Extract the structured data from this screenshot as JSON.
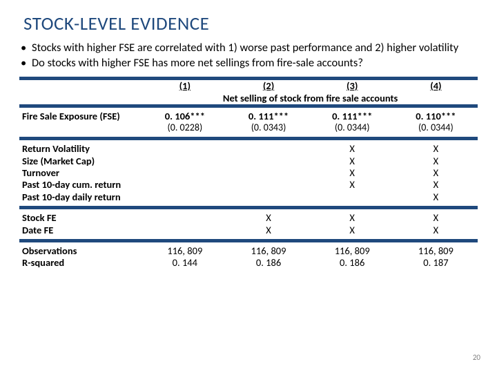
{
  "title": "STOCK-LEVEL EVIDENCE",
  "bullets": [
    "Stocks with higher FSE are correlated  with 1) worse past performance and 2) higher volatility",
    "Do stocks with higher FSE has more net sellings from fire-sale accounts?"
  ],
  "table": {
    "col_headers": [
      "(1)",
      "(2)",
      "(3)",
      "(4)"
    ],
    "sub_header": "Net selling of stock from fire sale accounts",
    "fse_label": "Fire Sale Exposure (FSE)",
    "fse": {
      "coef": [
        "0. 106***",
        "0. 111***",
        "0. 111***",
        "0. 110***"
      ],
      "se": [
        "(0. 0228)",
        "(0. 0343)",
        "(0. 0344)",
        "(0. 0344)"
      ]
    },
    "controls": [
      {
        "label": "Return Volatility",
        "marks": [
          "",
          "",
          "X",
          "X"
        ]
      },
      {
        "label": "Size (Market Cap)",
        "marks": [
          "",
          "",
          "X",
          "X"
        ]
      },
      {
        "label": "Turnover",
        "marks": [
          "",
          "",
          "X",
          "X"
        ]
      },
      {
        "label": "Past 10-day cum. return",
        "marks": [
          "",
          "",
          "X",
          "X"
        ]
      },
      {
        "label": "Past 10-day daily return",
        "marks": [
          "",
          "",
          "",
          "X"
        ]
      }
    ],
    "fe": [
      {
        "label": "Stock FE",
        "marks": [
          "",
          "X",
          "X",
          "X"
        ]
      },
      {
        "label": "Date FE",
        "marks": [
          "",
          "X",
          "X",
          "X"
        ]
      }
    ],
    "obs_label": "Observations",
    "obs": [
      "116, 809",
      "116, 809",
      "116, 809",
      "116, 809"
    ],
    "r2_label": "R-squared",
    "r2": [
      "0. 144",
      "0. 186",
      "0. 186",
      "0. 187"
    ]
  },
  "page_number": "20",
  "colors": {
    "heading": "#1f497d",
    "band": "#1f497d",
    "text": "#000000",
    "background": "#ffffff"
  }
}
